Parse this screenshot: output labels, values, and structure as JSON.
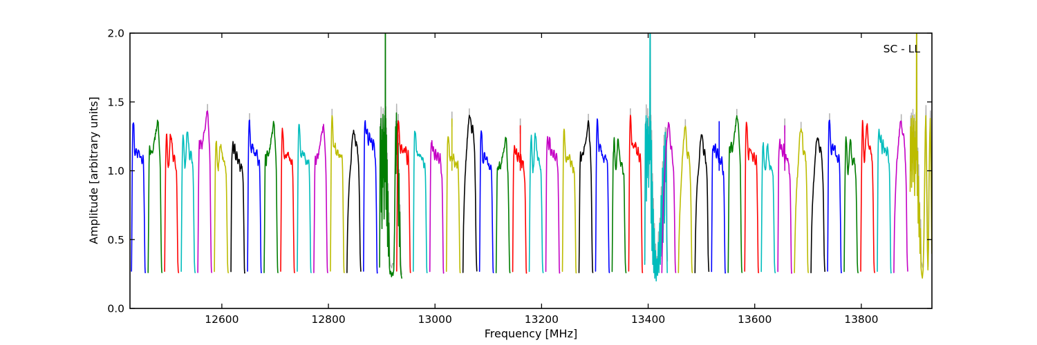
{
  "figure": {
    "annotation": "SC - LL",
    "xlabel": "Frequency [MHz]",
    "ylabel": "Amplitude [arbitrary units]",
    "background": "#ffffff"
  },
  "chart_data": {
    "type": "line",
    "title": "",
    "annotation": "SC - LL",
    "xlabel": "Frequency [MHz]",
    "ylabel": "Amplitude [arbitrary units]",
    "xlim": [
      12427.6,
      13932.5
    ],
    "ylim": [
      0.0,
      2.0
    ],
    "xtick_values": [
      12600,
      12800,
      13000,
      13200,
      13400,
      13600,
      13800
    ],
    "xtick_labels": [
      "12600",
      "12800",
      "13000",
      "13200",
      "13400",
      "13600",
      "13800"
    ],
    "ytick_values": [
      0.0,
      0.5,
      1.0,
      1.5,
      2.0
    ],
    "ytick_labels": [
      "0.0",
      "0.5",
      "1.0",
      "1.5",
      "2.0"
    ],
    "grid": false,
    "legend": "none",
    "color_cycle": [
      "#0000ff",
      "#007d00",
      "#ff0000",
      "#00bcbc",
      "#c400c4",
      "#bcbc00",
      "#000000"
    ],
    "flagged_color": "#b3b3b3",
    "band_start_mhz": 12429,
    "band_pitch_mhz": 31.1,
    "band_data_offset_mhz": 1.5,
    "band_data_width_mhz": 26,
    "baseline_amp": 0.25,
    "shape_templates": {
      "A": [
        [
          0,
          0.27
        ],
        [
          0.02,
          0.5
        ],
        [
          0.05,
          0.95
        ],
        [
          0.08,
          1.21
        ],
        [
          0.12,
          1.3
        ],
        [
          0.17,
          1.26
        ],
        [
          0.22,
          1.14
        ],
        [
          0.28,
          1.1
        ],
        [
          0.35,
          1.13
        ],
        [
          0.43,
          1.09
        ],
        [
          0.52,
          1.11
        ],
        [
          0.6,
          1.06
        ],
        [
          0.68,
          1.08
        ],
        [
          0.76,
          1.03
        ],
        [
          0.83,
          1.05
        ],
        [
          0.88,
          0.95
        ],
        [
          0.93,
          0.62
        ],
        [
          0.97,
          0.3
        ],
        [
          1,
          0.26
        ]
      ],
      "B": [
        [
          0,
          0.27
        ],
        [
          0.03,
          0.65
        ],
        [
          0.07,
          1.08
        ],
        [
          0.11,
          1.25
        ],
        [
          0.15,
          1.3
        ],
        [
          0.2,
          1.18
        ],
        [
          0.26,
          1.06
        ],
        [
          0.33,
          1.12
        ],
        [
          0.4,
          1.26
        ],
        [
          0.47,
          1.29
        ],
        [
          0.54,
          1.2
        ],
        [
          0.62,
          1.12
        ],
        [
          0.7,
          1.14
        ],
        [
          0.78,
          1.08
        ],
        [
          0.85,
          1.0
        ],
        [
          0.9,
          0.72
        ],
        [
          0.95,
          0.34
        ],
        [
          1,
          0.26
        ]
      ],
      "C": [
        [
          0,
          0.26
        ],
        [
          0.04,
          0.55
        ],
        [
          0.1,
          0.78
        ],
        [
          0.18,
          0.95
        ],
        [
          0.28,
          1.08
        ],
        [
          0.38,
          1.22
        ],
        [
          0.48,
          1.3
        ],
        [
          0.56,
          1.27
        ],
        [
          0.63,
          1.18
        ],
        [
          0.7,
          1.21
        ],
        [
          0.77,
          1.12
        ],
        [
          0.84,
          1.03
        ],
        [
          0.9,
          0.8
        ],
        [
          0.95,
          0.4
        ],
        [
          1,
          0.27
        ]
      ],
      "D": [
        [
          0,
          0.27
        ],
        [
          0.03,
          0.75
        ],
        [
          0.06,
          1.15
        ],
        [
          0.1,
          1.28
        ],
        [
          0.15,
          1.3
        ],
        [
          0.21,
          1.22
        ],
        [
          0.28,
          1.27
        ],
        [
          0.35,
          1.17
        ],
        [
          0.42,
          1.23
        ],
        [
          0.5,
          1.15
        ],
        [
          0.58,
          1.2
        ],
        [
          0.66,
          1.12
        ],
        [
          0.74,
          1.16
        ],
        [
          0.82,
          1.08
        ],
        [
          0.88,
          1.0
        ],
        [
          0.93,
          0.65
        ],
        [
          0.97,
          0.3
        ],
        [
          1,
          0.26
        ]
      ],
      "E": [
        [
          0,
          0.26
        ],
        [
          0.04,
          0.48
        ],
        [
          0.1,
          0.7
        ],
        [
          0.17,
          0.88
        ],
        [
          0.25,
          1.02
        ],
        [
          0.34,
          1.18
        ],
        [
          0.43,
          1.28
        ],
        [
          0.5,
          1.3
        ],
        [
          0.57,
          1.25
        ],
        [
          0.64,
          1.12
        ],
        [
          0.71,
          1.15
        ],
        [
          0.78,
          1.07
        ],
        [
          0.85,
          0.97
        ],
        [
          0.91,
          0.7
        ],
        [
          0.96,
          0.33
        ],
        [
          1,
          0.26
        ]
      ],
      "F": [
        [
          0,
          0.26
        ],
        [
          0.03,
          0.55
        ],
        [
          0.07,
          0.98
        ],
        [
          0.11,
          1.12
        ],
        [
          0.16,
          1.06
        ],
        [
          0.22,
          1.13
        ],
        [
          0.3,
          1.09
        ],
        [
          0.4,
          1.16
        ],
        [
          0.5,
          1.21
        ],
        [
          0.6,
          1.27
        ],
        [
          0.7,
          1.31
        ],
        [
          0.76,
          1.24
        ],
        [
          0.82,
          1.12
        ],
        [
          0.88,
          0.96
        ],
        [
          0.93,
          0.55
        ],
        [
          0.97,
          0.3
        ],
        [
          1,
          0.26
        ]
      ]
    },
    "bands": [
      {
        "template": "A",
        "peak": 1.34
      },
      {
        "template": "F",
        "peak": 1.36
      },
      {
        "template": "B",
        "peak": 1.27
      },
      {
        "template": "B",
        "peak": 1.28
      },
      {
        "template": "F",
        "peak": 1.43,
        "gray_tip": true
      },
      {
        "template": "B",
        "peak": 1.22
      },
      {
        "template": "D",
        "peak": 1.18
      },
      {
        "template": "A",
        "peak": 1.35,
        "gray_tip": true
      },
      {
        "template": "F",
        "peak": 1.33
      },
      {
        "template": "A",
        "peak": 1.3
      },
      {
        "template": "A",
        "peak": 1.32
      },
      {
        "template": "F",
        "peak": 1.32
      },
      {
        "template": "A",
        "peak": 1.37,
        "gray_tip": true
      },
      {
        "template": "C",
        "peak": 1.3
      },
      {
        "template": "D",
        "peak": 1.35
      },
      {
        "rfi": true,
        "points": [
          [
            12896.0,
            0.3
          ],
          [
            12896.6,
            0.8
          ],
          [
            12897.2,
            1.32
          ],
          [
            12897.9,
            0.95
          ],
          [
            12898.5,
            1.38
          ],
          [
            12899.2,
            0.7
          ],
          [
            12899.8,
            1.22
          ],
          [
            12900.5,
            0.58
          ],
          [
            12901.1,
            1.3
          ],
          [
            12901.8,
            0.88
          ],
          [
            12902.4,
            1.41
          ],
          [
            12903.1,
            0.95
          ],
          [
            12903.8,
            1.28
          ],
          [
            12904.5,
            0.65
          ],
          [
            12905.1,
            1.25
          ],
          [
            12905.7,
            1.4
          ],
          [
            12906.2,
            0.92
          ],
          [
            12906.6,
            1.1
          ],
          [
            12906.8,
            2.42
          ],
          [
            12907.1,
            0.98
          ],
          [
            12907.6,
            1.38
          ],
          [
            12908.2,
            0.72
          ],
          [
            12908.9,
            1.26
          ],
          [
            12909.5,
            0.6
          ],
          [
            12910.2,
            1.08
          ],
          [
            12911.0,
            0.45
          ],
          [
            12911.8,
            0.85
          ],
          [
            12912.6,
            0.38
          ],
          [
            12913.5,
            0.62
          ],
          [
            12914.5,
            0.3
          ],
          [
            12915.6,
            0.25
          ],
          [
            12917.0,
            0.27
          ],
          [
            12918.4,
            0.23
          ],
          [
            12919.8,
            0.26
          ],
          [
            12921.2,
            0.24
          ],
          [
            12922.6,
            0.28
          ],
          [
            12924.0,
            0.55
          ],
          [
            12925.0,
            0.95
          ],
          [
            12926.0,
            1.32
          ],
          [
            12926.8,
            0.98
          ],
          [
            12927.6,
            1.42
          ],
          [
            12928.4,
            1.12
          ],
          [
            12929.2,
            1.34
          ],
          [
            12930.0,
            0.88
          ],
          [
            12930.8,
            1.2
          ],
          [
            12931.6,
            0.6
          ],
          [
            12932.4,
            0.98
          ],
          [
            12933.2,
            0.45
          ],
          [
            12934.0,
            0.7
          ],
          [
            12935.0,
            0.32
          ],
          [
            12936.2,
            0.25
          ],
          [
            12937.6,
            0.22
          ]
        ]
      },
      {
        "template": "A",
        "peak": 1.38,
        "gray_tip": true
      },
      {
        "template": "A",
        "peak": 1.31
      },
      {
        "template": "D",
        "peak": 1.22
      },
      {
        "template": "A",
        "peak": 1.28,
        "spike": {
          "frac": 0.4,
          "height": 1.38,
          "gray": true
        }
      },
      {
        "template": "C",
        "peak": 1.42,
        "gray_tip": true
      },
      {
        "template": "A",
        "peak": 1.27
      },
      {
        "template": "F",
        "peak": 1.22
      },
      {
        "template": "D",
        "peak": 1.18,
        "spike": {
          "frac": 0.55,
          "height": 1.33,
          "gray": true
        }
      },
      {
        "template": "B",
        "peak": 1.25
      },
      {
        "template": "D",
        "peak": 1.25
      },
      {
        "template": "A",
        "peak": 1.28
      },
      {
        "template": "F",
        "peak": 1.33,
        "gray_tip": true
      },
      {
        "template": "A",
        "peak": 1.34
      },
      {
        "template": "B",
        "peak": 1.22
      },
      {
        "template": "A",
        "peak": 1.38,
        "gray_tip": true
      },
      {
        "rfi": true,
        "points": [
          [
            13393.6,
            0.32
          ],
          [
            13394.2,
            0.88
          ],
          [
            13394.8,
            1.34
          ],
          [
            13395.5,
            1.02
          ],
          [
            13396.1,
            1.4
          ],
          [
            13396.8,
            0.78
          ],
          [
            13397.5,
            1.3
          ],
          [
            13398.2,
            0.95
          ],
          [
            13398.9,
            1.38
          ],
          [
            13399.6,
            1.08
          ],
          [
            13400.3,
            1.32
          ],
          [
            13401.0,
            0.88
          ],
          [
            13401.7,
            1.26
          ],
          [
            13402.4,
            1.05
          ],
          [
            13403.1,
            1.44
          ],
          [
            13403.7,
            2.42
          ],
          [
            13404.2,
            1.08
          ],
          [
            13404.9,
            1.36
          ],
          [
            13405.6,
            0.62
          ],
          [
            13406.3,
            1.22
          ],
          [
            13407.1,
            0.42
          ],
          [
            13407.9,
            0.92
          ],
          [
            13408.7,
            0.32
          ],
          [
            13409.6,
            0.72
          ],
          [
            13410.5,
            0.26
          ],
          [
            13411.5,
            0.58
          ],
          [
            13412.5,
            0.22
          ],
          [
            13413.8,
            0.42
          ],
          [
            13415.1,
            0.2
          ],
          [
            13416.4,
            0.36
          ],
          [
            13417.7,
            0.24
          ],
          [
            13419.0,
            0.48
          ],
          [
            13420.3,
            0.26
          ],
          [
            13421.6,
            0.62
          ],
          [
            13422.9,
            0.32
          ],
          [
            13424.2,
            0.82
          ],
          [
            13425.5,
            0.38
          ],
          [
            13426.8,
            1.02
          ],
          [
            13428.1,
            0.48
          ],
          [
            13429.4,
            1.18
          ],
          [
            13430.7,
            0.62
          ],
          [
            13431.9,
            1.28
          ],
          [
            13433.0,
            0.92
          ],
          [
            13434.0,
            1.22
          ],
          [
            13434.9,
            0.5
          ],
          [
            13435.8,
            0.26
          ]
        ]
      },
      {
        "template": "E",
        "peak": 1.33
      },
      {
        "template": "E",
        "peak": 1.3,
        "gray_tip": true
      },
      {
        "template": "C",
        "peak": 1.26
      },
      {
        "template": "D",
        "peak": 1.2,
        "spike": {
          "frac": 0.55,
          "height": 1.36,
          "gray": false
        }
      },
      {
        "template": "F",
        "peak": 1.4,
        "gray_tip": true
      },
      {
        "template": "A",
        "peak": 1.33
      },
      {
        "template": "B",
        "peak": 1.21
      },
      {
        "template": "D",
        "peak": 1.22,
        "spike": {
          "frac": 0.5,
          "height": 1.33,
          "gray": true
        }
      },
      {
        "template": "E",
        "peak": 1.32,
        "gray_tip": true
      },
      {
        "template": "C",
        "peak": 1.25
      },
      {
        "template": "A",
        "peak": 1.36,
        "gray_tip": true
      },
      {
        "template": "B",
        "peak": 1.22
      },
      {
        "template": "B",
        "peak": 1.33
      },
      {
        "template": "D",
        "peak": 1.28
      },
      {
        "template": "C",
        "peak": 1.35,
        "gray_tip": true
      },
      {
        "rfi": true,
        "points": [
          [
            13891.6,
            0.85
          ],
          [
            13892.3,
            1.32
          ],
          [
            13893.0,
            1.0
          ],
          [
            13893.7,
            1.38
          ],
          [
            13894.4,
            0.88
          ],
          [
            13895.1,
            1.28
          ],
          [
            13895.8,
            1.06
          ],
          [
            13896.5,
            1.4
          ],
          [
            13897.2,
            0.92
          ],
          [
            13897.9,
            1.33
          ],
          [
            13898.6,
            1.1
          ],
          [
            13899.3,
            1.38
          ],
          [
            13900.1,
            0.82
          ],
          [
            13900.9,
            1.24
          ],
          [
            13901.7,
            0.98
          ],
          [
            13902.5,
            1.36
          ],
          [
            13903.2,
            1.08
          ],
          [
            13903.7,
            2.42
          ],
          [
            13904.3,
            1.18
          ],
          [
            13905.0,
            0.82
          ],
          [
            13905.8,
            1.14
          ],
          [
            13906.6,
            0.62
          ],
          [
            13907.4,
            0.96
          ],
          [
            13908.3,
            0.52
          ],
          [
            13909.2,
            0.76
          ],
          [
            13910.1,
            0.4
          ],
          [
            13911.0,
            0.58
          ],
          [
            13912.0,
            0.3
          ],
          [
            13913.2,
            0.25
          ],
          [
            13914.6,
            0.22
          ],
          [
            13916.0,
            0.28
          ],
          [
            13917.4,
            0.52
          ],
          [
            13918.8,
            0.92
          ],
          [
            13920.0,
            1.28
          ],
          [
            13921.0,
            1.4
          ],
          [
            13922.0,
            1.16
          ],
          [
            13923.0,
            0.78
          ],
          [
            13924.0,
            0.42
          ],
          [
            13925.0,
            0.28
          ],
          [
            13926.0,
            0.45
          ],
          [
            13927.0,
            0.88
          ],
          [
            13928.2,
            1.22
          ],
          [
            13929.4,
            1.38
          ],
          [
            13930.4,
            1.12
          ],
          [
            13931.4,
            0.72
          ],
          [
            13932.2,
            0.4
          ]
        ]
      }
    ]
  }
}
